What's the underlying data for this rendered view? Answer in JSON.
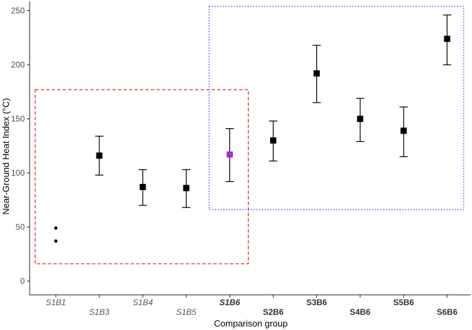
{
  "chart_data": {
    "type": "scatter",
    "title": "",
    "xlabel": "Comparison group",
    "ylabel": "Near-Ground Heat Index (°C)",
    "ylim": [
      0,
      255
    ],
    "yticks": [
      0,
      50,
      100,
      150,
      200,
      250
    ],
    "grid": false,
    "categories": [
      "S1B1",
      "S1B3",
      "S1B4",
      "S1B5",
      "S1B6",
      "S2B6",
      "S3B6",
      "S4B6",
      "S5B6",
      "S6B6"
    ],
    "category_styles": [
      {
        "italic": true,
        "bold": false,
        "color": "#595959",
        "row": 0
      },
      {
        "italic": true,
        "bold": false,
        "color": "#595959",
        "row": 1
      },
      {
        "italic": true,
        "bold": false,
        "color": "#595959",
        "row": 0
      },
      {
        "italic": true,
        "bold": false,
        "color": "#595959",
        "row": 1
      },
      {
        "italic": true,
        "bold": true,
        "color": "#333333",
        "row": 0
      },
      {
        "italic": false,
        "bold": true,
        "color": "#333333",
        "row": 1
      },
      {
        "italic": false,
        "bold": true,
        "color": "#333333",
        "row": 0
      },
      {
        "italic": false,
        "bold": true,
        "color": "#333333",
        "row": 1
      },
      {
        "italic": false,
        "bold": true,
        "color": "#333333",
        "row": 0
      },
      {
        "italic": false,
        "bold": true,
        "color": "#333333",
        "row": 1
      }
    ],
    "series": [
      {
        "means": [
          null,
          116,
          87,
          86,
          117,
          130,
          192,
          150,
          139,
          224
        ],
        "lower": [
          null,
          98,
          70,
          68,
          92,
          111,
          165,
          129,
          115,
          200
        ],
        "upper": [
          null,
          134,
          103,
          103,
          141,
          148,
          218,
          169,
          161,
          246
        ],
        "marker_colors": [
          "#000000",
          "#000000",
          "#000000",
          "#000000",
          "#9b30d9",
          "#000000",
          "#000000",
          "#000000",
          "#000000",
          "#000000"
        ]
      }
    ],
    "points": [
      {
        "category": "S1B1",
        "value": 49
      },
      {
        "category": "S1B1",
        "value": 37
      }
    ],
    "highlight_boxes": [
      {
        "color": "#e8312f",
        "style": "dashed",
        "from_category": "S1B1",
        "to_category": "S1B6",
        "ymin": 16,
        "ymax": 177
      },
      {
        "color": "#3b3bd8",
        "style": "dotted",
        "from_category": "S1B6",
        "to_category": "S6B6",
        "ymin": 66,
        "ymax": 254
      }
    ]
  }
}
